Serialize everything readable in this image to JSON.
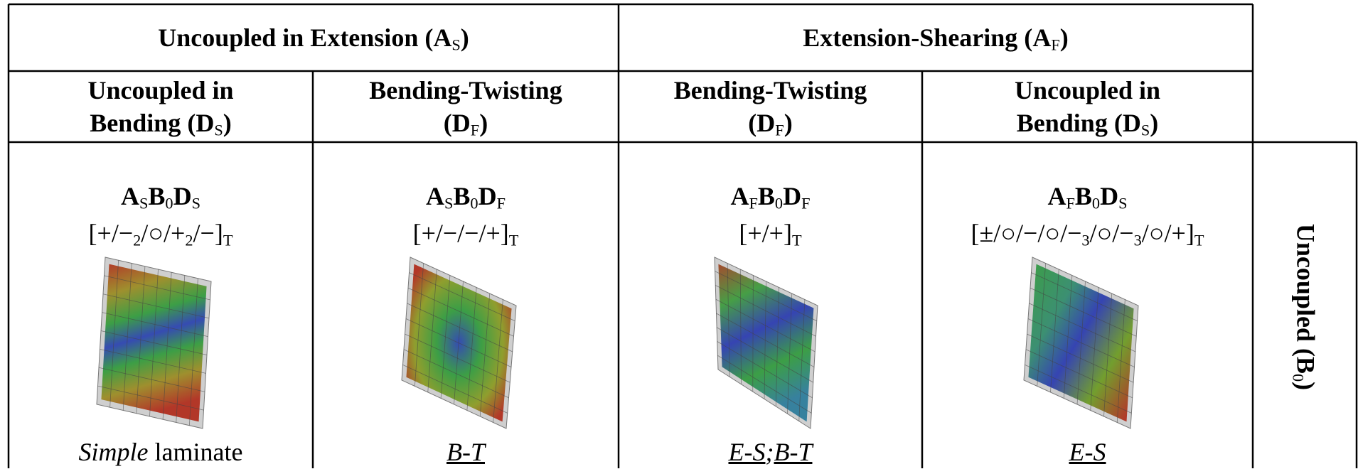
{
  "header_top": [
    {
      "before": "Uncoupled in Extension (",
      "symbol": "A",
      "subscript": "S",
      "after": ")"
    },
    {
      "before": "Extension-Shearing (",
      "symbol": "A",
      "subscript": "F",
      "after": ")"
    }
  ],
  "header_sub": [
    {
      "line1": "Uncoupled in",
      "before": "Bending (",
      "symbol": "D",
      "subscript": "S",
      "after": ")"
    },
    {
      "line1": "Bending-Twisting",
      "before": "(",
      "symbol": "D",
      "subscript": "F",
      "after": ")"
    },
    {
      "line1": "Bending-Twisting",
      "before": "(",
      "symbol": "D",
      "subscript": "F",
      "after": ")"
    },
    {
      "line1": "Uncoupled in",
      "before": "Bending (",
      "symbol": "D",
      "subscript": "S",
      "after": ")"
    }
  ],
  "cells": [
    {
      "code": [
        [
          "A",
          "S"
        ],
        [
          "B",
          "0"
        ],
        [
          "D",
          "S"
        ]
      ],
      "sequence": [
        "[+/−",
        "2",
        "/○/+",
        "2",
        "/−]",
        "T"
      ],
      "caption": [
        {
          "text": "Simple",
          "style": "italic"
        },
        {
          "text": " laminate",
          "style": "plain"
        }
      ]
    },
    {
      "code": [
        [
          "A",
          "S"
        ],
        [
          "B",
          "0"
        ],
        [
          "D",
          "F"
        ]
      ],
      "sequence": [
        "[+/−/−/+]",
        "T"
      ],
      "caption": [
        {
          "text": "B-T",
          "style": "italic-underline"
        }
      ]
    },
    {
      "code": [
        [
          "A",
          "F"
        ],
        [
          "B",
          "0"
        ],
        [
          "D",
          "F"
        ]
      ],
      "sequence": [
        "[+/+]",
        "T"
      ],
      "caption": [
        {
          "text": "E-S",
          "style": "italic-underline"
        },
        {
          "text": ";",
          "style": "italic"
        },
        {
          "text": "B-T",
          "style": "italic-underline"
        }
      ]
    },
    {
      "code": [
        [
          "A",
          "F"
        ],
        [
          "B",
          "0"
        ],
        [
          "D",
          "S"
        ]
      ],
      "sequence": [
        "[±/○/−/○/−",
        "3",
        "/○/−",
        "3",
        "/○/+]",
        "T"
      ],
      "caption": [
        {
          "text": "E-S",
          "style": "italic-underline"
        }
      ]
    }
  ],
  "side_label": {
    "before": "Uncoupled (",
    "symbol": "B",
    "subscript": "0",
    "after": ")"
  }
}
